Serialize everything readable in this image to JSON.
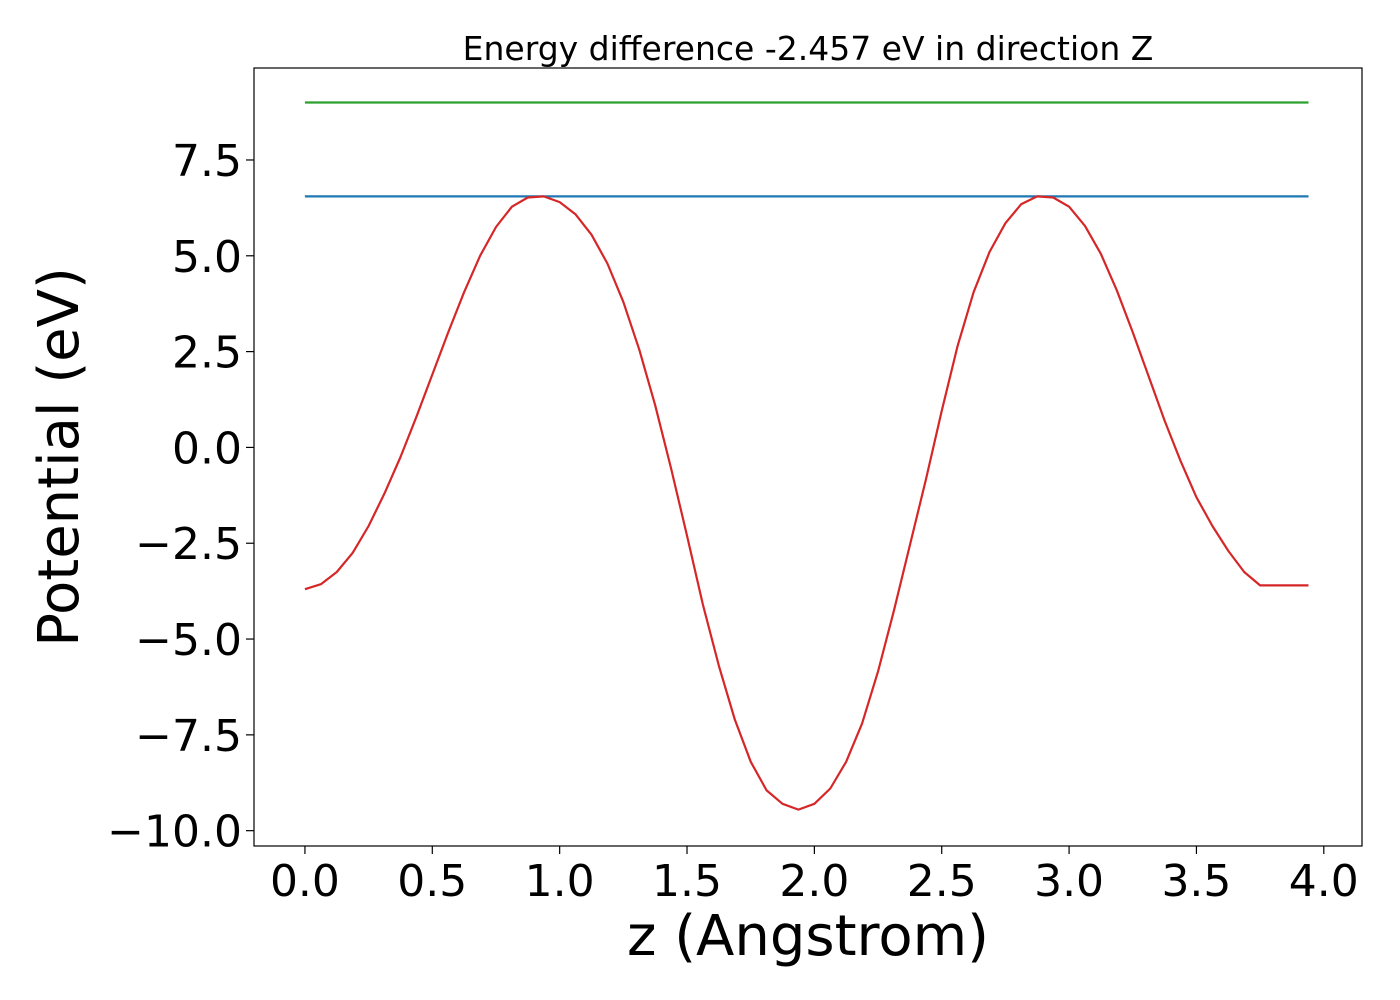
{
  "chart_data": {
    "type": "line",
    "title": "Energy difference -2.457 eV in direction Z",
    "xlabel": "z (Angstrom)",
    "ylabel": "Potential (eV)",
    "xlim": [
      -0.2,
      4.15
    ],
    "ylim": [
      -10.4,
      9.9
    ],
    "xticks": [
      0.0,
      0.5,
      1.0,
      1.5,
      2.0,
      2.5,
      3.0,
      3.5,
      4.0
    ],
    "xtick_labels": [
      "0.0",
      "0.5",
      "1.0",
      "1.5",
      "2.0",
      "2.5",
      "3.0",
      "3.5",
      "4.0"
    ],
    "yticks": [
      -10.0,
      -7.5,
      -5.0,
      -2.5,
      0.0,
      2.5,
      5.0,
      7.5
    ],
    "ytick_labels": [
      "−10.0",
      "−7.5",
      "−5.0",
      "−2.5",
      "0.0",
      "2.5",
      "5.0",
      "7.5"
    ],
    "grid": false,
    "series": [
      {
        "color": "#2ca02c",
        "x": [
          0.0,
          3.94
        ],
        "y": [
          9.0,
          9.0
        ]
      },
      {
        "color": "#1f77b4",
        "x": [
          0.0,
          3.94
        ],
        "y": [
          6.55,
          6.55
        ]
      },
      {
        "color": "#d62728",
        "x": [
          0.0,
          0.0625,
          0.125,
          0.1875,
          0.25,
          0.3125,
          0.375,
          0.4375,
          0.5,
          0.5625,
          0.625,
          0.6875,
          0.75,
          0.8125,
          0.875,
          0.9375,
          1.0,
          1.0625,
          1.125,
          1.1875,
          1.25,
          1.3125,
          1.375,
          1.4375,
          1.5,
          1.5625,
          1.625,
          1.6875,
          1.75,
          1.8125,
          1.875,
          1.9375,
          2.0,
          2.0625,
          2.125,
          2.1875,
          2.25,
          2.3125,
          2.375,
          2.4375,
          2.5,
          2.5625,
          2.625,
          2.6875,
          2.75,
          2.8125,
          2.875,
          2.9375,
          3.0,
          3.0625,
          3.125,
          3.1875,
          3.25,
          3.3125,
          3.375,
          3.4375,
          3.5,
          3.5625,
          3.625,
          3.6875,
          3.75,
          3.8125,
          3.875,
          3.94
        ],
        "y": [
          -3.7,
          -3.57,
          -3.25,
          -2.75,
          -2.05,
          -1.2,
          -0.25,
          0.8,
          1.9,
          3.0,
          4.05,
          5.0,
          5.75,
          6.28,
          6.52,
          6.55,
          6.4,
          6.08,
          5.55,
          4.8,
          3.8,
          2.55,
          1.1,
          -0.55,
          -2.3,
          -4.1,
          -5.7,
          -7.1,
          -8.2,
          -8.95,
          -9.3,
          -9.45,
          -9.3,
          -8.9,
          -8.2,
          -7.2,
          -5.85,
          -4.25,
          -2.55,
          -0.85,
          0.95,
          2.65,
          4.05,
          5.1,
          5.85,
          6.35,
          6.55,
          6.52,
          6.28,
          5.78,
          5.05,
          4.1,
          3.0,
          1.85,
          0.7,
          -0.35,
          -1.3,
          -2.05,
          -2.7,
          -3.25,
          -3.6,
          -3.6,
          -3.6,
          -3.6
        ]
      }
    ]
  }
}
